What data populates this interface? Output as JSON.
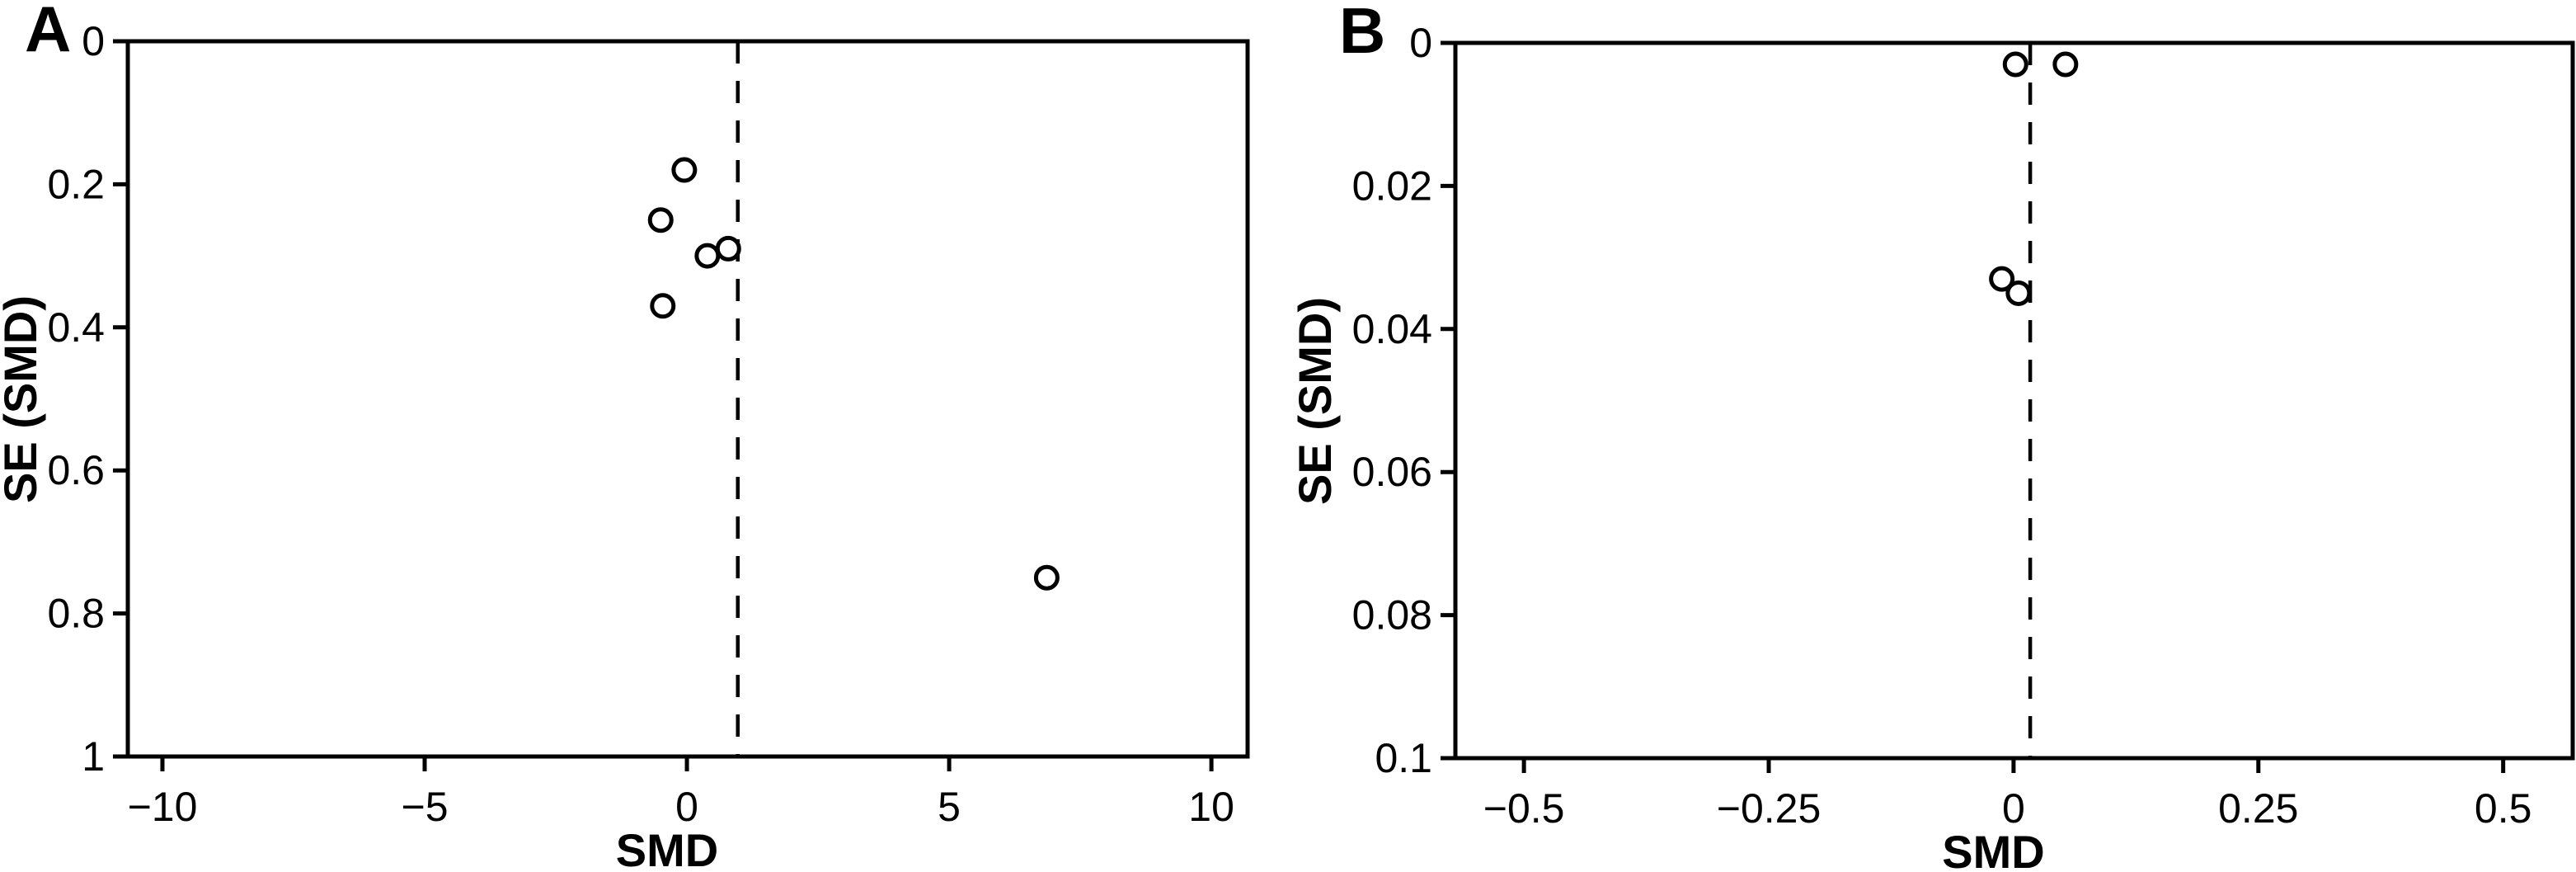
{
  "figure": {
    "kind": "funnel-plot-pair",
    "background_color": "#ffffff",
    "ink_color": "#000000"
  },
  "chart_data": [
    {
      "type": "scatter",
      "label": "A",
      "xlabel": "SMD",
      "ylabel": "SE (SMD)",
      "xlim": [
        -10.66,
        10.69
      ],
      "ylim_top_to_bottom": [
        0,
        1
      ],
      "grid": false,
      "legend": "none",
      "x_ticks": [
        {
          "v": -10,
          "label": "−10"
        },
        {
          "v": -5,
          "label": "−5"
        },
        {
          "v": 0,
          "label": "0"
        },
        {
          "v": 5,
          "label": "5"
        },
        {
          "v": 10,
          "label": "10"
        }
      ],
      "y_ticks": [
        {
          "v": 0,
          "label": "0"
        },
        {
          "v": 0.2,
          "label": "0.2"
        },
        {
          "v": 0.4,
          "label": "0.4"
        },
        {
          "v": 0.6,
          "label": "0.6"
        },
        {
          "v": 0.8,
          "label": "0.8"
        },
        {
          "v": 1,
          "label": "1"
        }
      ],
      "pooled_effect_smd": 0.97,
      "points": [
        {
          "smd": -0.05,
          "se": 0.18
        },
        {
          "smd": -0.5,
          "se": 0.25
        },
        {
          "smd": 0.39,
          "se": 0.3
        },
        {
          "smd": 0.79,
          "se": 0.29
        },
        {
          "smd": -0.46,
          "se": 0.37
        },
        {
          "smd": 6.86,
          "se": 0.75
        }
      ]
    },
    {
      "type": "scatter",
      "label": "B",
      "xlabel": "SMD",
      "ylabel": "SE (SMD)",
      "xlim": [
        -0.57,
        0.571
      ],
      "ylim_top_to_bottom": [
        0,
        0.1
      ],
      "grid": false,
      "legend": "none",
      "x_ticks": [
        {
          "v": -0.5,
          "label": "−0.5"
        },
        {
          "v": -0.25,
          "label": "−0.25"
        },
        {
          "v": 0,
          "label": "0"
        },
        {
          "v": 0.25,
          "label": "0.25"
        },
        {
          "v": 0.5,
          "label": "0.5"
        }
      ],
      "y_ticks": [
        {
          "v": 0,
          "label": "0"
        },
        {
          "v": 0.02,
          "label": "0.02"
        },
        {
          "v": 0.04,
          "label": "0.04"
        },
        {
          "v": 0.06,
          "label": "0.06"
        },
        {
          "v": 0.08,
          "label": "0.08"
        },
        {
          "v": 0.1,
          "label": "0.1"
        }
      ],
      "pooled_effect_smd": 0.017,
      "points": [
        {
          "smd": 0.002,
          "se": 0.003
        },
        {
          "smd": 0.053,
          "se": 0.003
        },
        {
          "smd": -0.012,
          "se": 0.033
        },
        {
          "smd": 0.005,
          "se": 0.035
        }
      ]
    }
  ]
}
